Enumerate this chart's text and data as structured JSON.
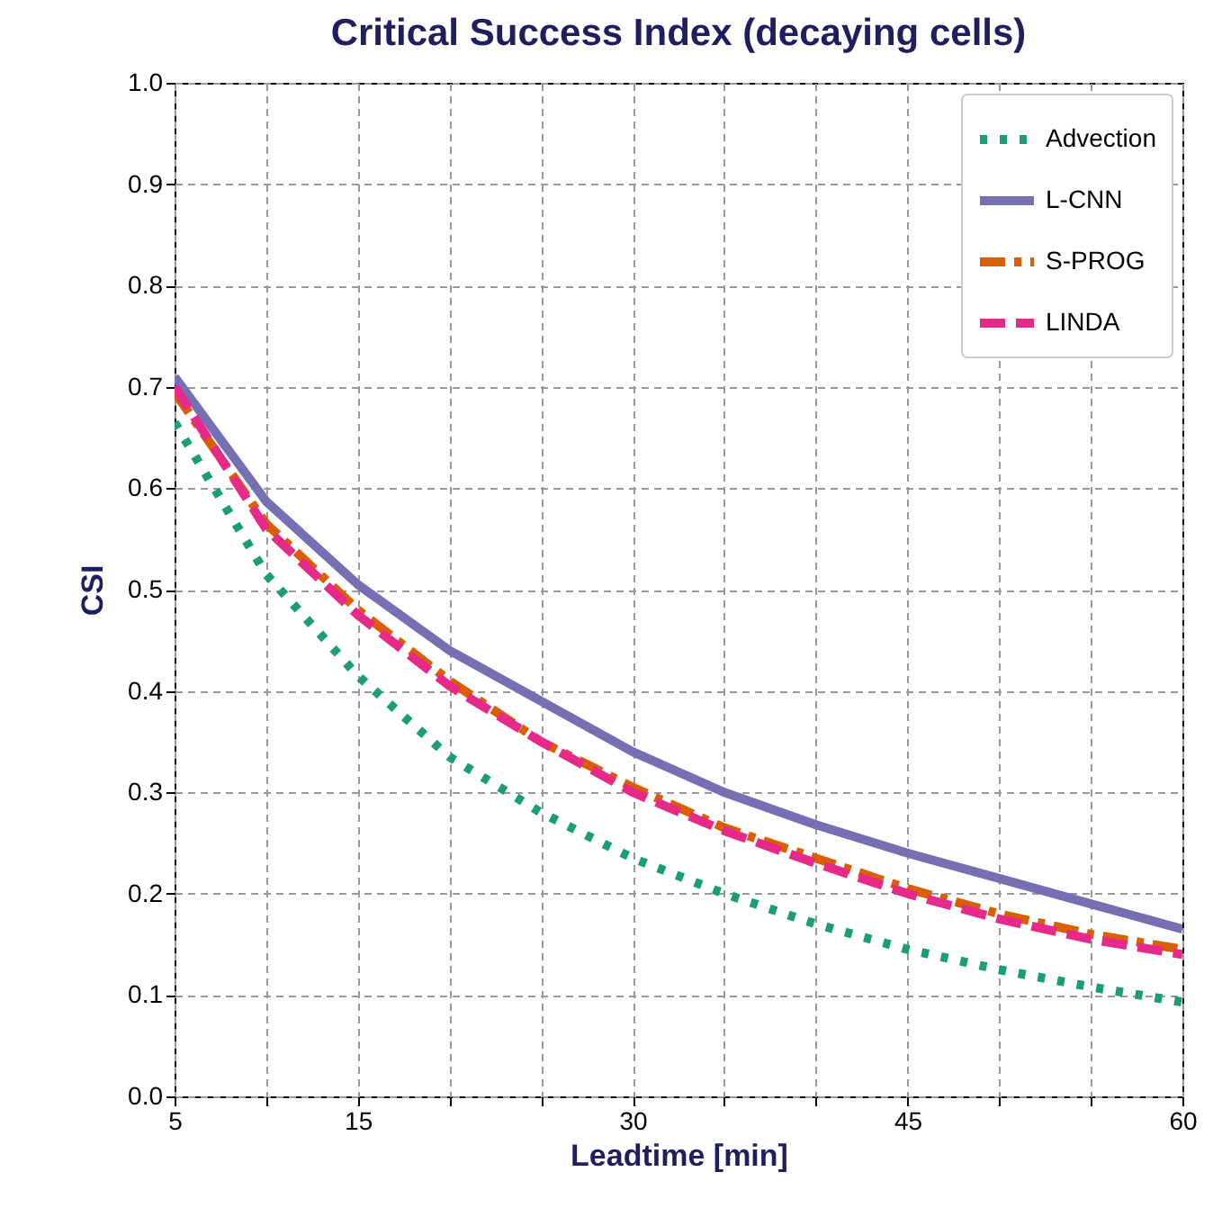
{
  "chart_data": {
    "type": "line",
    "title": "Critical Success Index (decaying cells)",
    "xlabel": "Leadtime [min]",
    "ylabel": "CSI",
    "x": [
      5,
      10,
      15,
      20,
      25,
      30,
      35,
      40,
      45,
      50,
      55,
      60
    ],
    "series": [
      {
        "name": "Advection",
        "color": "#1b9e77",
        "line_style": "dotted",
        "values": [
          0.665,
          0.515,
          0.415,
          0.335,
          0.28,
          0.235,
          0.2,
          0.17,
          0.145,
          0.125,
          0.108,
          0.093
        ]
      },
      {
        "name": "L-CNN",
        "color": "#7570b3",
        "line_style": "solid",
        "values": [
          0.71,
          0.587,
          0.505,
          0.44,
          0.39,
          0.34,
          0.3,
          0.268,
          0.24,
          0.215,
          0.19,
          0.165
        ]
      },
      {
        "name": "S-PROG",
        "color": "#d95f02",
        "line_style": "dashdot",
        "values": [
          0.695,
          0.565,
          0.48,
          0.41,
          0.35,
          0.305,
          0.265,
          0.235,
          0.205,
          0.18,
          0.16,
          0.145
        ]
      },
      {
        "name": "LINDA",
        "color": "#e7298a",
        "line_style": "dashed",
        "values": [
          0.7,
          0.56,
          0.475,
          0.405,
          0.35,
          0.3,
          0.262,
          0.23,
          0.2,
          0.175,
          0.155,
          0.14
        ]
      }
    ],
    "xlim": [
      5,
      60
    ],
    "xticks": [
      5,
      {
        "value": 10,
        "label": null
      },
      15,
      {
        "value": 20,
        "label": null
      },
      {
        "value": 25,
        "label": null
      },
      30,
      {
        "value": 35,
        "label": null
      },
      {
        "value": 40,
        "label": null
      },
      45,
      {
        "value": 50,
        "label": null
      },
      {
        "value": 55,
        "label": null
      },
      60
    ],
    "ylim": [
      0,
      1
    ],
    "yticks": [
      {
        "value": 0,
        "label": "0.0"
      },
      0.1,
      0.2,
      0.3,
      0.4,
      0.5,
      0.6,
      0.7,
      0.8,
      0.9,
      {
        "value": 1,
        "label": "1.0"
      }
    ],
    "grid": true,
    "legend": "top right",
    "marker": "none"
  }
}
